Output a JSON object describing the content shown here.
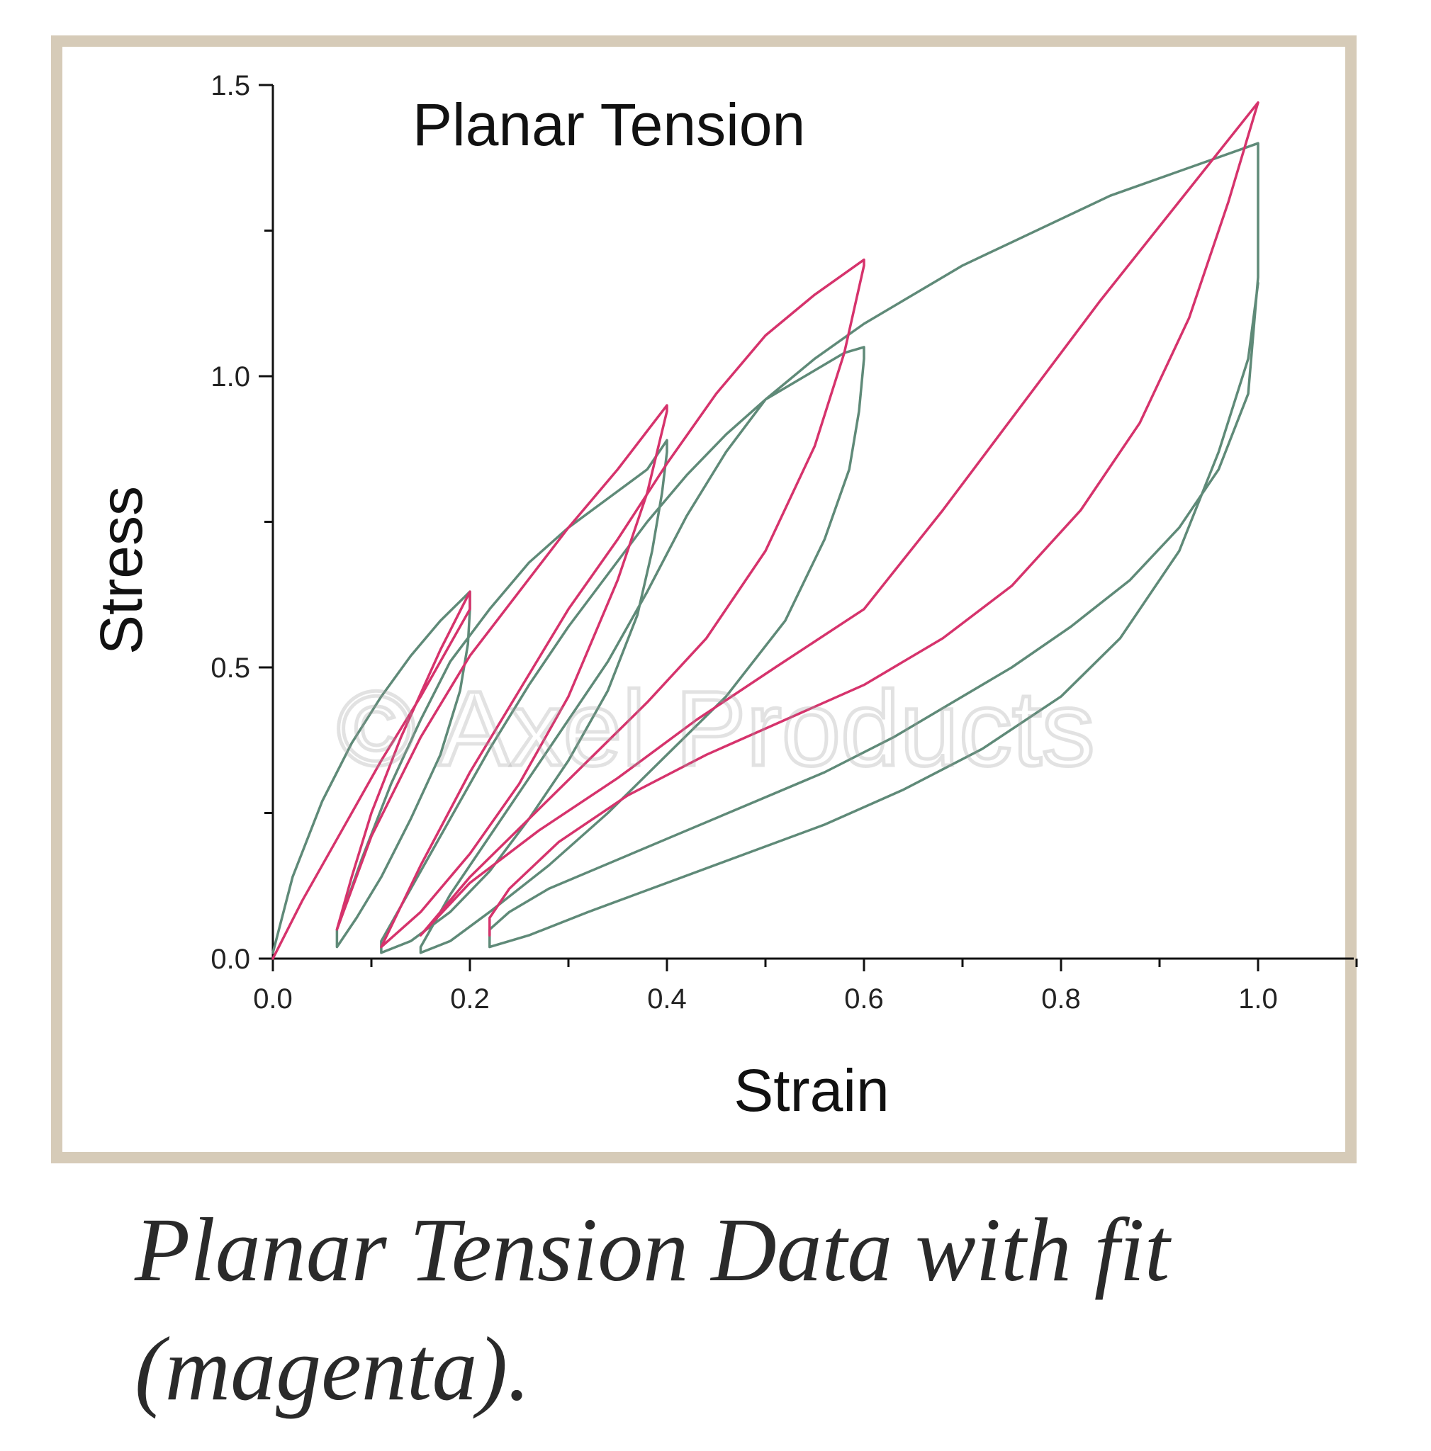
{
  "caption": "Planar Tension Data with fit (magenta).",
  "watermark": "© Axel Products",
  "colors": {
    "data": "#5f8a78",
    "fit": "#d6336c",
    "frame": "#d6cbb8"
  },
  "chart_data": {
    "type": "line",
    "title": "Planar Tension",
    "xlabel": "Strain",
    "ylabel": "Stress",
    "xlim": [
      0.0,
      1.1
    ],
    "ylim": [
      0.0,
      1.5
    ],
    "xticks": [
      0.0,
      0.2,
      0.4,
      0.6,
      0.8,
      1.0
    ],
    "xtick_labels": [
      "0.0",
      "0.2",
      "0.4",
      "0.6",
      "0.8",
      "1.0"
    ],
    "yticks": [
      0.0,
      0.5,
      1.0,
      1.5
    ],
    "ytick_labels": [
      "0.0",
      "0.5",
      "1.0",
      "1.5"
    ],
    "grid": false,
    "series": [
      {
        "group": "data",
        "x": [
          0.0,
          0.02,
          0.05,
          0.08,
          0.11,
          0.14,
          0.17,
          0.2,
          0.2,
          0.198,
          0.19,
          0.17,
          0.14,
          0.11,
          0.085,
          0.065,
          0.065,
          0.09,
          0.12,
          0.15,
          0.18,
          0.22,
          0.26,
          0.3,
          0.34,
          0.38,
          0.4,
          0.4,
          0.395,
          0.385,
          0.37,
          0.34,
          0.3,
          0.26,
          0.22,
          0.18,
          0.14,
          0.11,
          0.11,
          0.14,
          0.18,
          0.22,
          0.26,
          0.3,
          0.34,
          0.38,
          0.42,
          0.46,
          0.5,
          0.54,
          0.58,
          0.6,
          0.6,
          0.595,
          0.585,
          0.56,
          0.52,
          0.46,
          0.4,
          0.34,
          0.28,
          0.22,
          0.18,
          0.15,
          0.15,
          0.18,
          0.22,
          0.26,
          0.3,
          0.34,
          0.38,
          0.42,
          0.46,
          0.5,
          0.55,
          0.6,
          0.65,
          0.7,
          0.75,
          0.8,
          0.85,
          0.9,
          0.95,
          1.0,
          1.0,
          0.99,
          0.96,
          0.92,
          0.87,
          0.81,
          0.75,
          0.69,
          0.63,
          0.56,
          0.49,
          0.42,
          0.35,
          0.28,
          0.24,
          0.22,
          0.22,
          0.26,
          0.32,
          0.4,
          0.48,
          0.56,
          0.64,
          0.72,
          0.8,
          0.86,
          0.92,
          0.96,
          0.99,
          1.0
        ],
        "y": [
          0.01,
          0.14,
          0.27,
          0.37,
          0.45,
          0.52,
          0.58,
          0.63,
          0.6,
          0.54,
          0.46,
          0.35,
          0.24,
          0.14,
          0.07,
          0.02,
          0.05,
          0.17,
          0.3,
          0.41,
          0.51,
          0.6,
          0.68,
          0.74,
          0.79,
          0.84,
          0.89,
          0.87,
          0.8,
          0.7,
          0.59,
          0.46,
          0.34,
          0.24,
          0.15,
          0.08,
          0.03,
          0.01,
          0.03,
          0.12,
          0.24,
          0.36,
          0.47,
          0.57,
          0.66,
          0.75,
          0.83,
          0.9,
          0.96,
          1.0,
          1.04,
          1.05,
          1.03,
          0.94,
          0.84,
          0.72,
          0.58,
          0.45,
          0.35,
          0.25,
          0.16,
          0.08,
          0.03,
          0.01,
          0.02,
          0.11,
          0.21,
          0.31,
          0.41,
          0.51,
          0.63,
          0.76,
          0.87,
          0.96,
          1.03,
          1.09,
          1.14,
          1.19,
          1.23,
          1.27,
          1.31,
          1.34,
          1.37,
          1.4,
          1.17,
          0.97,
          0.84,
          0.74,
          0.65,
          0.57,
          0.5,
          0.44,
          0.38,
          0.32,
          0.27,
          0.22,
          0.17,
          0.12,
          0.08,
          0.05,
          0.02,
          0.04,
          0.08,
          0.13,
          0.18,
          0.23,
          0.29,
          0.36,
          0.45,
          0.55,
          0.7,
          0.87,
          1.03,
          1.16
        ]
      },
      {
        "group": "fit",
        "x": [
          0.0,
          0.03,
          0.07,
          0.11,
          0.15,
          0.2,
          0.2,
          0.17,
          0.13,
          0.1,
          0.08,
          0.065,
          0.065,
          0.1,
          0.15,
          0.2,
          0.25,
          0.3,
          0.35,
          0.4,
          0.4,
          0.38,
          0.35,
          0.3,
          0.25,
          0.2,
          0.15,
          0.11,
          0.11,
          0.15,
          0.2,
          0.25,
          0.3,
          0.35,
          0.4,
          0.45,
          0.5,
          0.55,
          0.6,
          0.6,
          0.58,
          0.55,
          0.5,
          0.44,
          0.38,
          0.32,
          0.26,
          0.2,
          0.15,
          0.15,
          0.2,
          0.27,
          0.35,
          0.43,
          0.51,
          0.6,
          0.68,
          0.76,
          0.84,
          0.92,
          1.0,
          1.0,
          0.97,
          0.93,
          0.88,
          0.82,
          0.75,
          0.68,
          0.6,
          0.52,
          0.44,
          0.36,
          0.29,
          0.24,
          0.22,
          0.22
        ],
        "y": [
          0.0,
          0.1,
          0.22,
          0.34,
          0.45,
          0.6,
          0.63,
          0.53,
          0.38,
          0.25,
          0.14,
          0.05,
          0.05,
          0.21,
          0.38,
          0.52,
          0.63,
          0.74,
          0.84,
          0.95,
          0.94,
          0.8,
          0.65,
          0.45,
          0.3,
          0.18,
          0.08,
          0.02,
          0.02,
          0.16,
          0.32,
          0.46,
          0.6,
          0.72,
          0.85,
          0.97,
          1.07,
          1.14,
          1.2,
          1.19,
          1.04,
          0.88,
          0.7,
          0.55,
          0.44,
          0.34,
          0.24,
          0.14,
          0.04,
          0.04,
          0.13,
          0.22,
          0.31,
          0.41,
          0.5,
          0.6,
          0.77,
          0.95,
          1.13,
          1.3,
          1.47,
          1.47,
          1.3,
          1.1,
          0.92,
          0.77,
          0.64,
          0.55,
          0.47,
          0.41,
          0.35,
          0.28,
          0.2,
          0.12,
          0.07,
          0.04
        ]
      }
    ]
  }
}
